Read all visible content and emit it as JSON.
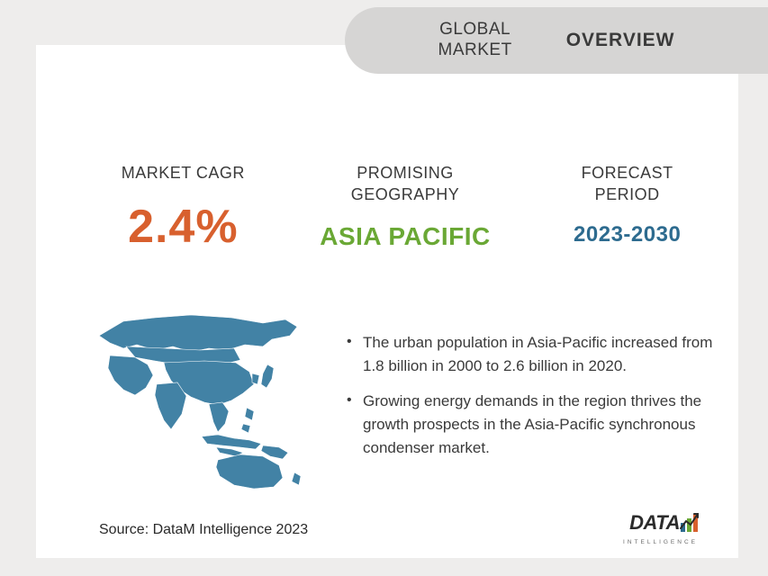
{
  "header": {
    "global_market": "GLOBAL\nMARKET",
    "overview": "OVERVIEW"
  },
  "metrics": {
    "cagr": {
      "label": "MARKET CAGR",
      "value": "2.4%",
      "color": "#d8602e"
    },
    "geography": {
      "label": "PROMISING\nGEOGRAPHY",
      "value": "ASIA PACIFIC",
      "color": "#6aa835"
    },
    "period": {
      "label": "FORECAST\nPERIOD",
      "value": "2023-2030",
      "color": "#2d6b8f"
    }
  },
  "bullets": [
    "The urban population in Asia-Pacific increased from 1.8 billion in 2000 to 2.6 billion in 2020.",
    "Growing energy demands in the region thrives the growth prospects in the Asia-Pacific synchronous condenser market."
  ],
  "source": "Source: DataM Intelligence 2023",
  "logo": {
    "brand": "DATA",
    "sub": "INTELLIGENCE"
  },
  "map": {
    "fill": "#4282a5",
    "stroke": "#3a6f8c"
  },
  "colors": {
    "page_bg": "#eeedec",
    "card_bg": "#ffffff",
    "pill_bg": "#d6d5d4",
    "text": "#3a3a3a"
  }
}
